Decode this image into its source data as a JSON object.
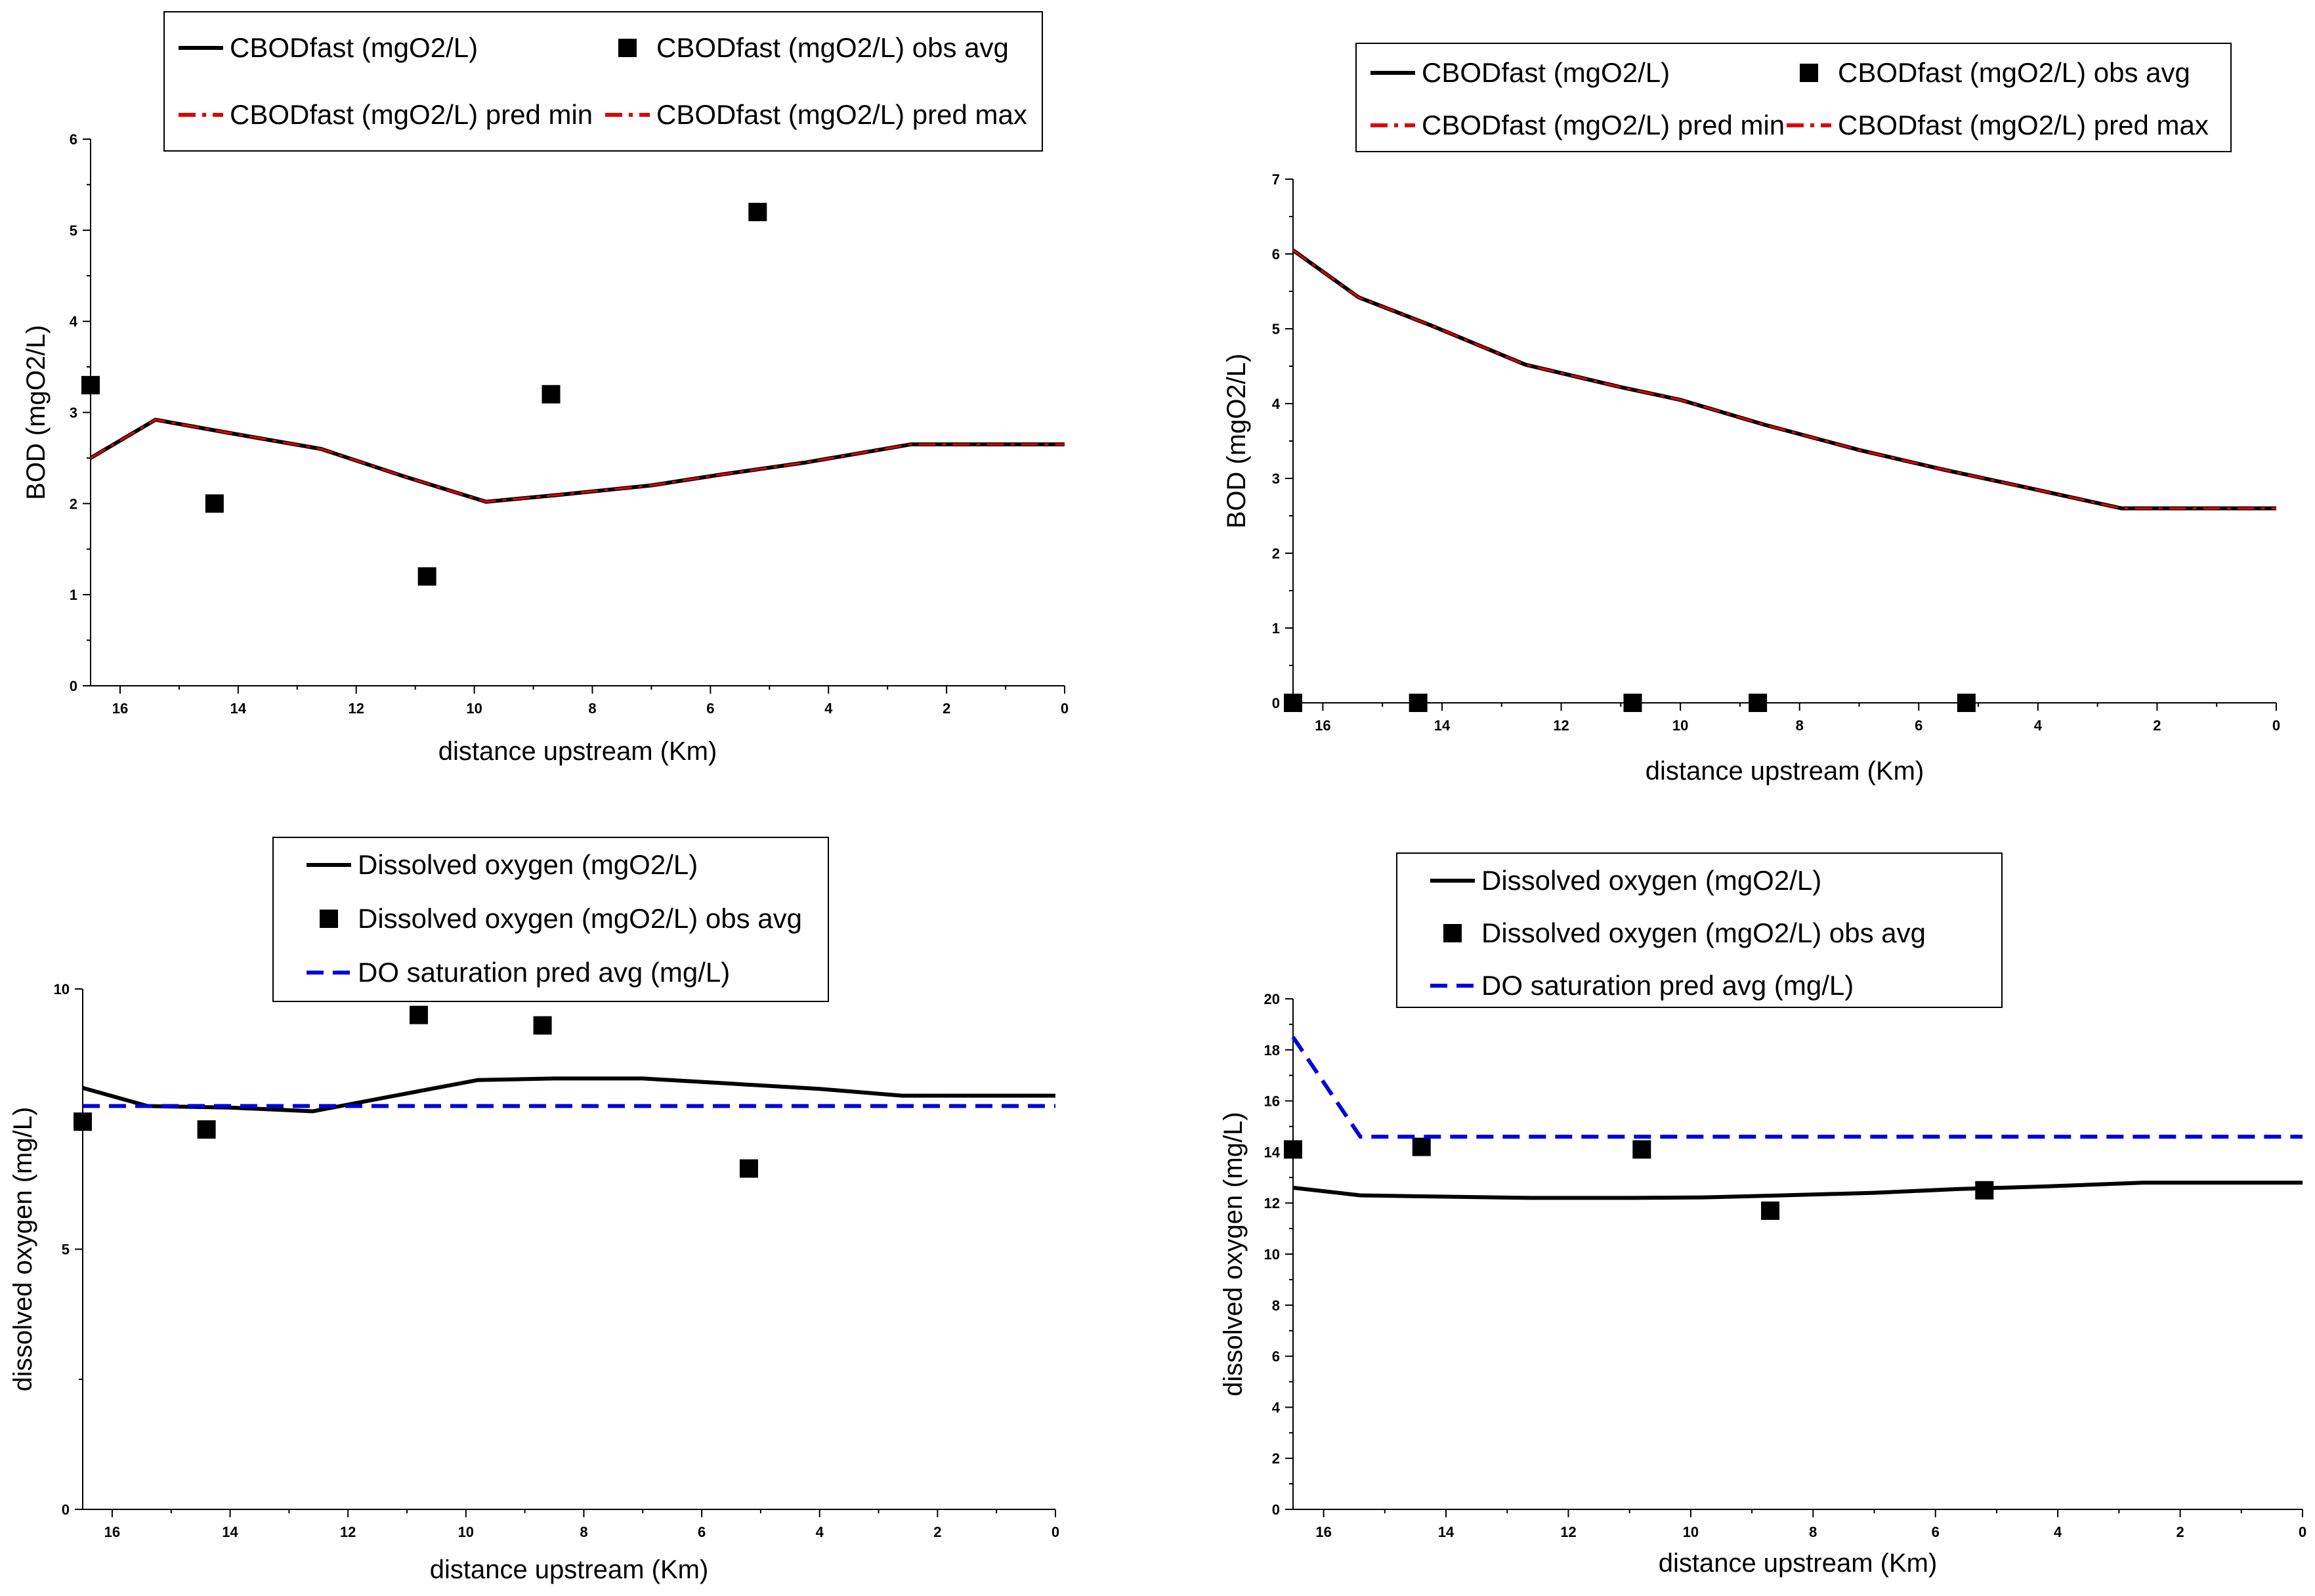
{
  "colors": {
    "model": "#000000",
    "obs": "#000000",
    "pred": "#e00000",
    "saturation": "#0000dd",
    "axis": "#000000",
    "legend_border": "#000000"
  },
  "chart_data": [
    {
      "id": "bod-a",
      "type": "line",
      "title": "",
      "xlabel": "distance upstream (Km)",
      "ylabel": "BOD (mgO2/L)",
      "xlim": [
        16.5,
        0
      ],
      "ylim": [
        0,
        6
      ],
      "xticks": [
        16,
        14,
        12,
        10,
        8,
        6,
        4,
        2,
        0
      ],
      "yticks": [
        0,
        1,
        2,
        3,
        4,
        5,
        6
      ],
      "legend": {
        "columns": 2,
        "entries": [
          {
            "label": "CBODfast (mgO2/L)",
            "series": 0
          },
          {
            "label": "CBODfast (mgO2/L) obs avg",
            "series": 1
          },
          {
            "label": "CBODfast (mgO2/L) pred min",
            "series": 2
          },
          {
            "label": "CBODfast (mgO2/L) pred max",
            "series": 3
          }
        ]
      },
      "series": [
        {
          "name": "CBODfast (mgO2/L)",
          "kind": "line",
          "style": "solid",
          "color": "#000000",
          "x": [
            16.5,
            15.4,
            14.2,
            12.6,
            11.2,
            9.8,
            8.5,
            7.0,
            5.8,
            4.4,
            2.6,
            0
          ],
          "y": [
            2.5,
            2.92,
            2.78,
            2.6,
            2.3,
            2.02,
            2.1,
            2.2,
            2.32,
            2.45,
            2.65,
            2.65
          ]
        },
        {
          "name": "CBODfast (mgO2/L) obs avg",
          "kind": "marker",
          "color": "#000000",
          "x": [
            16.5,
            14.4,
            10.8,
            8.7,
            5.2
          ],
          "y": [
            3.3,
            2.0,
            1.2,
            3.2,
            5.2
          ]
        },
        {
          "name": "CBODfast (mgO2/L) pred min",
          "kind": "line",
          "style": "dashdot",
          "color": "#e00000",
          "x": [
            16.5,
            15.4,
            14.2,
            12.6,
            11.2,
            9.8,
            8.5,
            7.0,
            5.8,
            4.4,
            2.6,
            0
          ],
          "y": [
            2.5,
            2.92,
            2.78,
            2.6,
            2.3,
            2.02,
            2.1,
            2.2,
            2.32,
            2.45,
            2.65,
            2.65
          ]
        },
        {
          "name": "CBODfast (mgO2/L) pred max",
          "kind": "line",
          "style": "dashdot",
          "color": "#e00000",
          "x": [
            16.5,
            15.4,
            14.2,
            12.6,
            11.2,
            9.8,
            8.5,
            7.0,
            5.8,
            4.4,
            2.6,
            0
          ],
          "y": [
            2.5,
            2.92,
            2.78,
            2.6,
            2.3,
            2.02,
            2.1,
            2.2,
            2.32,
            2.45,
            2.65,
            2.65
          ]
        }
      ]
    },
    {
      "id": "bod-b",
      "type": "line",
      "title": "",
      "xlabel": "distance upstream (Km)",
      "ylabel": "BOD (mgO2/L)",
      "xlim": [
        16.5,
        0
      ],
      "ylim": [
        0,
        7
      ],
      "xticks": [
        16,
        14,
        12,
        10,
        8,
        6,
        4,
        2,
        0
      ],
      "yticks": [
        0,
        1,
        2,
        3,
        4,
        5,
        6,
        7
      ],
      "legend": {
        "columns": 2,
        "entries": [
          {
            "label": "CBODfast (mgO2/L)",
            "series": 0
          },
          {
            "label": "CBODfast (mgO2/L) obs avg",
            "series": 1
          },
          {
            "label": "CBODfast (mgO2/L) pred min",
            "series": 2
          },
          {
            "label": "CBODfast (mgO2/L) pred max",
            "series": 3
          }
        ]
      },
      "series": [
        {
          "name": "CBODfast (mgO2/L)",
          "kind": "line",
          "style": "solid",
          "color": "#000000",
          "x": [
            16.5,
            15.4,
            14.2,
            12.6,
            11.0,
            10.0,
            8.6,
            7.0,
            5.6,
            4.2,
            2.6,
            0
          ],
          "y": [
            6.05,
            5.42,
            5.05,
            4.52,
            4.22,
            4.05,
            3.72,
            3.38,
            3.12,
            2.88,
            2.6,
            2.6
          ]
        },
        {
          "name": "CBODfast (mgO2/L) obs avg",
          "kind": "marker",
          "color": "#000000",
          "x": [
            16.5,
            14.4,
            10.8,
            8.7,
            5.2
          ],
          "y": [
            0,
            0,
            0,
            0,
            0
          ]
        },
        {
          "name": "CBODfast (mgO2/L) pred min",
          "kind": "line",
          "style": "dashdot",
          "color": "#e00000",
          "x": [
            16.5,
            15.4,
            14.2,
            12.6,
            11.0,
            10.0,
            8.6,
            7.0,
            5.6,
            4.2,
            2.6,
            0
          ],
          "y": [
            6.05,
            5.42,
            5.05,
            4.52,
            4.22,
            4.05,
            3.72,
            3.38,
            3.12,
            2.88,
            2.6,
            2.6
          ]
        },
        {
          "name": "CBODfast (mgO2/L) pred max",
          "kind": "line",
          "style": "dashdot",
          "color": "#e00000",
          "x": [
            16.5,
            15.4,
            14.2,
            12.6,
            11.0,
            10.0,
            8.6,
            7.0,
            5.6,
            4.2,
            2.6,
            0
          ],
          "y": [
            6.05,
            5.42,
            5.05,
            4.52,
            4.22,
            4.05,
            3.72,
            3.38,
            3.12,
            2.88,
            2.6,
            2.6
          ]
        }
      ]
    },
    {
      "id": "do-a",
      "type": "line",
      "title": "",
      "xlabel": "distance upstream (Km)",
      "ylabel": "dissolved oxygen (mg/L)",
      "xlim": [
        16.5,
        0
      ],
      "ylim": [
        0,
        10
      ],
      "xticks": [
        16,
        14,
        12,
        10,
        8,
        6,
        4,
        2,
        0
      ],
      "yticks": [
        0,
        5,
        10
      ],
      "legend": {
        "columns": 1,
        "entries": [
          {
            "label": "Dissolved oxygen (mgO2/L)",
            "series": 0
          },
          {
            "label": "Dissolved oxygen (mgO2/L) obs avg",
            "series": 1
          },
          {
            "label": "DO saturation pred avg (mg/L)",
            "series": 2
          }
        ]
      },
      "series": [
        {
          "name": "Dissolved oxygen (mgO2/L)",
          "kind": "line",
          "style": "solid",
          "color": "#000000",
          "x": [
            16.5,
            15.4,
            14.0,
            12.6,
            11.2,
            9.8,
            8.5,
            7.0,
            5.5,
            4.0,
            2.6,
            0
          ],
          "y": [
            8.1,
            7.75,
            7.72,
            7.65,
            7.95,
            8.25,
            8.28,
            8.28,
            8.18,
            8.08,
            7.95,
            7.95
          ]
        },
        {
          "name": "Dissolved oxygen (mgO2/L) obs avg",
          "kind": "marker",
          "color": "#000000",
          "x": [
            16.5,
            14.4,
            10.8,
            8.7,
            5.2
          ],
          "y": [
            7.45,
            7.3,
            9.5,
            9.3,
            6.55
          ]
        },
        {
          "name": "DO saturation pred avg (mg/L)",
          "kind": "line",
          "style": "dashed",
          "color": "#0000dd",
          "x": [
            16.5,
            15.4,
            0
          ],
          "y": [
            7.75,
            7.75,
            7.75
          ]
        }
      ]
    },
    {
      "id": "do-b",
      "type": "line",
      "title": "",
      "xlabel": "distance upstream (Km)",
      "ylabel": "dissolved oxygen (mg/L)",
      "xlim": [
        16.5,
        0
      ],
      "ylim": [
        0,
        20
      ],
      "xticks": [
        16,
        14,
        12,
        10,
        8,
        6,
        4,
        2,
        0
      ],
      "yticks": [
        0,
        2,
        4,
        6,
        8,
        10,
        12,
        14,
        16,
        18,
        20
      ],
      "legend": {
        "columns": 1,
        "entries": [
          {
            "label": "Dissolved oxygen (mgO2/L)",
            "series": 0
          },
          {
            "label": "Dissolved oxygen (mgO2/L) obs avg",
            "series": 1
          },
          {
            "label": "DO saturation pred avg (mg/L)",
            "series": 2
          }
        ]
      },
      "series": [
        {
          "name": "Dissolved oxygen (mgO2/L)",
          "kind": "line",
          "style": "solid",
          "color": "#000000",
          "x": [
            16.5,
            15.4,
            14.0,
            12.6,
            11.0,
            9.8,
            8.5,
            7.0,
            5.6,
            4.2,
            2.6,
            0
          ],
          "y": [
            12.6,
            12.3,
            12.25,
            12.2,
            12.2,
            12.22,
            12.3,
            12.4,
            12.55,
            12.65,
            12.8,
            12.8
          ]
        },
        {
          "name": "Dissolved oxygen (mgO2/L) obs avg",
          "kind": "marker",
          "color": "#000000",
          "x": [
            16.5,
            14.4,
            10.8,
            8.7,
            5.2
          ],
          "y": [
            14.1,
            14.2,
            14.1,
            11.7,
            12.5
          ]
        },
        {
          "name": "DO saturation pred avg (mg/L)",
          "kind": "line",
          "style": "dashed",
          "color": "#0000dd",
          "x": [
            16.5,
            15.4,
            0
          ],
          "y": [
            18.5,
            14.6,
            14.6
          ]
        }
      ]
    }
  ]
}
